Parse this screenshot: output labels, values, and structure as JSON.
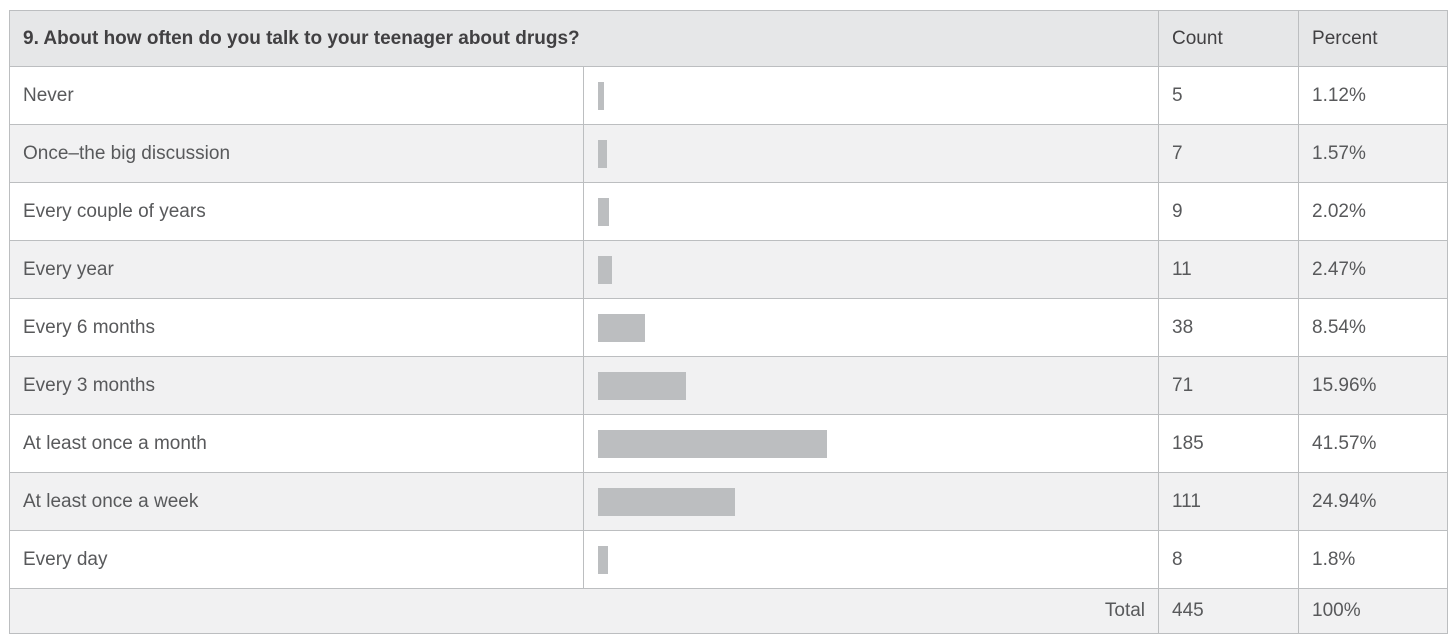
{
  "table": {
    "title": "9. About how often do you talk to your teenager about drugs?",
    "columns": [
      "Count",
      "Percent"
    ],
    "rows": [
      {
        "label": "Never",
        "count": 5,
        "percent": {
          "value": 1.12,
          "label": "1.12%"
        }
      },
      {
        "label": "Once–the big discussion",
        "count": 7,
        "percent": {
          "value": 1.57,
          "label": "1.57%"
        }
      },
      {
        "label": "Every couple of years",
        "count": 9,
        "percent": {
          "value": 2.02,
          "label": "2.02%"
        }
      },
      {
        "label": "Every year",
        "count": 11,
        "percent": {
          "value": 2.47,
          "label": "2.47%"
        }
      },
      {
        "label": "Every 6 months",
        "count": 38,
        "percent": {
          "value": 8.54,
          "label": "8.54%"
        }
      },
      {
        "label": "Every 3 months",
        "count": 71,
        "percent": {
          "value": 15.96,
          "label": "15.96%"
        }
      },
      {
        "label": "At least once a month",
        "count": 185,
        "percent": {
          "value": 41.57,
          "label": "41.57%"
        }
      },
      {
        "label": "At least once a week",
        "count": 111,
        "percent": {
          "value": 24.94,
          "label": "24.94%"
        }
      },
      {
        "label": "Every day",
        "count": 8,
        "percent": {
          "value": 1.8,
          "label": "1.8%"
        }
      }
    ],
    "total": {
      "label": "Total",
      "count": 445,
      "percent": {
        "value": 100,
        "label": "100%"
      }
    }
  }
}
